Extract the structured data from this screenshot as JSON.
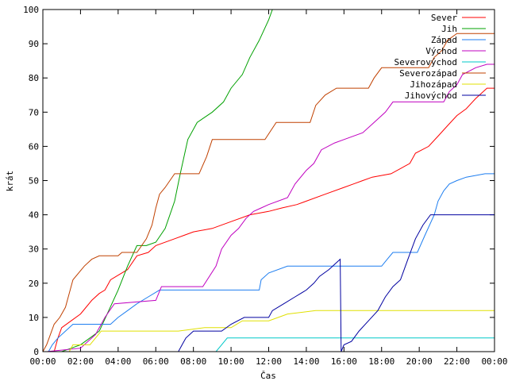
{
  "chart_data": {
    "type": "line",
    "title": "",
    "xlabel": "Čas",
    "ylabel": "krát",
    "ylim": [
      0,
      100
    ],
    "xlim": [
      0,
      24
    ],
    "x_unit": "hours",
    "grid": false,
    "legend_placement": "top-right",
    "y_ticks": [
      0,
      10,
      20,
      30,
      40,
      50,
      60,
      70,
      80,
      90,
      100
    ],
    "x_ticks": [
      {
        "value": 0,
        "label": "00:00"
      },
      {
        "value": 2,
        "label": "02:00"
      },
      {
        "value": 4,
        "label": "04:00"
      },
      {
        "value": 6,
        "label": "06:00"
      },
      {
        "value": 8,
        "label": "08:00"
      },
      {
        "value": 10,
        "label": "10:00"
      },
      {
        "value": 12,
        "label": "12:00"
      },
      {
        "value": 14,
        "label": "14:00"
      },
      {
        "value": 16,
        "label": "16:00"
      },
      {
        "value": 18,
        "label": "18:00"
      },
      {
        "value": 20,
        "label": "20:00"
      },
      {
        "value": 22,
        "label": "22:00"
      },
      {
        "value": 24,
        "label": "00:00"
      }
    ],
    "series": [
      {
        "name": "Sever",
        "color": "#ff0000",
        "points": [
          [
            0.6,
            0
          ],
          [
            0.8,
            4
          ],
          [
            1,
            7
          ],
          [
            1.5,
            9
          ],
          [
            2,
            11
          ],
          [
            2.3,
            13
          ],
          [
            2.6,
            15
          ],
          [
            3,
            17
          ],
          [
            3.3,
            18
          ],
          [
            3.6,
            21
          ],
          [
            4.5,
            24
          ],
          [
            5,
            28
          ],
          [
            5.6,
            29
          ],
          [
            6,
            31
          ],
          [
            7,
            33
          ],
          [
            7.5,
            34
          ],
          [
            8,
            35
          ],
          [
            9,
            36
          ],
          [
            10,
            38
          ],
          [
            11,
            40
          ],
          [
            12,
            41
          ],
          [
            12.7,
            42
          ],
          [
            13.5,
            43
          ],
          [
            14,
            44
          ],
          [
            15,
            46
          ],
          [
            16,
            48
          ],
          [
            16.5,
            49
          ],
          [
            17,
            50
          ],
          [
            17.5,
            51
          ],
          [
            18.5,
            52
          ],
          [
            19.5,
            55
          ],
          [
            19.8,
            58
          ],
          [
            20.5,
            60
          ],
          [
            21,
            63
          ],
          [
            21.5,
            66
          ],
          [
            22,
            69
          ],
          [
            22.5,
            71
          ],
          [
            23,
            74
          ],
          [
            23.6,
            77
          ],
          [
            24,
            77
          ]
        ]
      },
      {
        "name": "Jih",
        "color": "#00a000",
        "points": [
          [
            0,
            0
          ],
          [
            1,
            0
          ],
          [
            1.5,
            1
          ],
          [
            2,
            2
          ],
          [
            2.5,
            4
          ],
          [
            3,
            6
          ],
          [
            3.5,
            12
          ],
          [
            4,
            18
          ],
          [
            4.5,
            25
          ],
          [
            5,
            31
          ],
          [
            5.5,
            31
          ],
          [
            6,
            32
          ],
          [
            6.5,
            36
          ],
          [
            7,
            44
          ],
          [
            7.3,
            52
          ],
          [
            7.7,
            62
          ],
          [
            8.2,
            67
          ],
          [
            9,
            70
          ],
          [
            9.6,
            73
          ],
          [
            10,
            77
          ],
          [
            10.6,
            81
          ],
          [
            11,
            86
          ],
          [
            11.5,
            91
          ],
          [
            12,
            97
          ],
          [
            12.2,
            100
          ]
        ]
      },
      {
        "name": "Západ",
        "color": "#1e7ef0",
        "points": [
          [
            0.3,
            0
          ],
          [
            0.5,
            2
          ],
          [
            0.8,
            4
          ],
          [
            1.2,
            6
          ],
          [
            1.6,
            8
          ],
          [
            3.6,
            8
          ],
          [
            4,
            10
          ],
          [
            4.5,
            12
          ],
          [
            5,
            14
          ],
          [
            5.6,
            16
          ],
          [
            6.2,
            18
          ],
          [
            11.5,
            18
          ],
          [
            11.6,
            21
          ],
          [
            12,
            23
          ],
          [
            13,
            25
          ],
          [
            18,
            25
          ],
          [
            18.3,
            27
          ],
          [
            18.6,
            29
          ],
          [
            19.9,
            29
          ],
          [
            20.3,
            34
          ],
          [
            20.8,
            40
          ],
          [
            21,
            44
          ],
          [
            21.3,
            47
          ],
          [
            21.6,
            49
          ],
          [
            22,
            50
          ],
          [
            22.5,
            51
          ],
          [
            23.5,
            52
          ],
          [
            24,
            52
          ]
        ]
      },
      {
        "name": "Východ",
        "color": "#c000c0",
        "points": [
          [
            0.2,
            0
          ],
          [
            2,
            1
          ],
          [
            2.8,
            5
          ],
          [
            3.3,
            10
          ],
          [
            3.8,
            14
          ],
          [
            6,
            15
          ],
          [
            6.3,
            19
          ],
          [
            8.5,
            19
          ],
          [
            9.2,
            25
          ],
          [
            9.5,
            30
          ],
          [
            10,
            34
          ],
          [
            10.4,
            36
          ],
          [
            10.8,
            39
          ],
          [
            11.2,
            41
          ],
          [
            11.6,
            42
          ],
          [
            12,
            43
          ],
          [
            13,
            45
          ],
          [
            13.4,
            49
          ],
          [
            14,
            53
          ],
          [
            14.4,
            55
          ],
          [
            14.8,
            59
          ],
          [
            15.5,
            61
          ],
          [
            16,
            62
          ],
          [
            17,
            64
          ],
          [
            17.6,
            67
          ],
          [
            18.2,
            70
          ],
          [
            18.6,
            73
          ],
          [
            21.3,
            73
          ],
          [
            21.6,
            76
          ],
          [
            22,
            78
          ],
          [
            22.3,
            81
          ],
          [
            23,
            83
          ],
          [
            23.6,
            84
          ],
          [
            24,
            84
          ]
        ]
      },
      {
        "name": "Severovýchod",
        "color": "#00c8c8",
        "points": [
          [
            9.2,
            0
          ],
          [
            9.5,
            2
          ],
          [
            9.8,
            4
          ],
          [
            24,
            4
          ]
        ]
      },
      {
        "name": "Severozápad",
        "color": "#c04000",
        "points": [
          [
            0,
            0
          ],
          [
            0.2,
            2
          ],
          [
            0.4,
            5
          ],
          [
            0.6,
            8
          ],
          [
            0.9,
            10
          ],
          [
            1.2,
            13
          ],
          [
            1.4,
            17
          ],
          [
            1.6,
            21
          ],
          [
            2.2,
            25
          ],
          [
            2.6,
            27
          ],
          [
            3,
            28
          ],
          [
            4,
            28
          ],
          [
            4.2,
            29
          ],
          [
            5,
            29
          ],
          [
            5.5,
            33
          ],
          [
            5.8,
            37
          ],
          [
            6,
            42
          ],
          [
            6.2,
            46
          ],
          [
            6.5,
            48
          ],
          [
            7,
            52
          ],
          [
            8.3,
            52
          ],
          [
            8.7,
            57
          ],
          [
            9,
            62
          ],
          [
            11.8,
            62
          ],
          [
            12.4,
            67
          ],
          [
            14.2,
            67
          ],
          [
            14.5,
            72
          ],
          [
            15,
            75
          ],
          [
            15.6,
            77
          ],
          [
            17.3,
            77
          ],
          [
            17.6,
            80
          ],
          [
            18,
            83
          ],
          [
            20.5,
            83
          ],
          [
            20.8,
            86
          ],
          [
            21.2,
            88
          ],
          [
            21.5,
            91
          ],
          [
            22,
            93
          ],
          [
            24,
            93
          ]
        ]
      },
      {
        "name": "Jihozápad",
        "color": "#e0e000",
        "points": [
          [
            1.4,
            0
          ],
          [
            1.6,
            2
          ],
          [
            2.5,
            2
          ],
          [
            2.8,
            4
          ],
          [
            3.1,
            6
          ],
          [
            7.2,
            6
          ],
          [
            8.6,
            7
          ],
          [
            10,
            7
          ],
          [
            10.6,
            9
          ],
          [
            12,
            9
          ],
          [
            13,
            11
          ],
          [
            14.5,
            12
          ],
          [
            24,
            12
          ]
        ]
      },
      {
        "name": "Jihovýchod",
        "color": "#0000a0",
        "points": [
          [
            7.2,
            0
          ],
          [
            7.4,
            2
          ],
          [
            7.6,
            4
          ],
          [
            8,
            6
          ],
          [
            9.5,
            6
          ],
          [
            10,
            8
          ],
          [
            10.7,
            10
          ],
          [
            12,
            10
          ],
          [
            12.2,
            12
          ],
          [
            12.8,
            14
          ],
          [
            13.4,
            16
          ],
          [
            14,
            18
          ],
          [
            14.4,
            20
          ],
          [
            14.7,
            22
          ],
          [
            15.2,
            24
          ],
          [
            15.6,
            26
          ],
          [
            15.8,
            27
          ],
          [
            15.85,
            0
          ],
          [
            16,
            2
          ],
          [
            16.4,
            3
          ],
          [
            16.8,
            6
          ],
          [
            17.3,
            9
          ],
          [
            17.8,
            12
          ],
          [
            18.2,
            16
          ],
          [
            18.6,
            19
          ],
          [
            19,
            21
          ],
          [
            19.4,
            27
          ],
          [
            19.8,
            33
          ],
          [
            20.2,
            37
          ],
          [
            20.6,
            40
          ],
          [
            24,
            40
          ]
        ]
      }
    ]
  }
}
